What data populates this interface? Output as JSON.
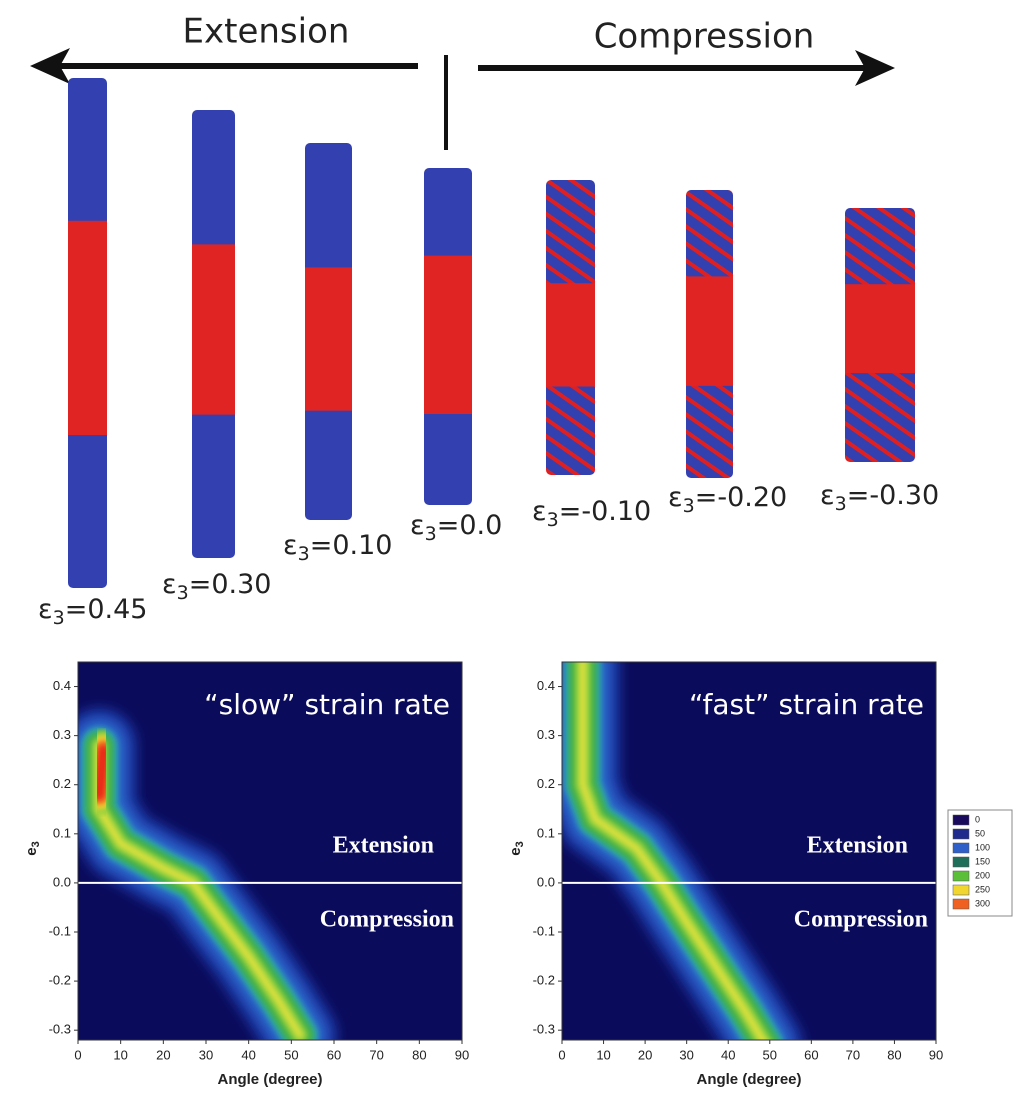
{
  "figure": {
    "arrow_left": "Extension",
    "arrow_right": "Compression",
    "columns": [
      {
        "symbol": "ε",
        "sub": "3",
        "value": "=0.45"
      },
      {
        "symbol": "ε",
        "sub": "3",
        "value": "=0.30"
      },
      {
        "symbol": "ε",
        "sub": "3",
        "value": "=0.10"
      },
      {
        "symbol": "ε",
        "sub": "3",
        "value": "=0.0"
      },
      {
        "symbol": "ε",
        "sub": "3",
        "value": "=-0.10"
      },
      {
        "symbol": "ε",
        "sub": "3",
        "value": "=-0.20"
      },
      {
        "symbol": "ε",
        "sub": "3",
        "value": "=-0.30"
      }
    ]
  },
  "chart_data": [
    {
      "type": "heatmap",
      "annotation": "“slow” strain rate",
      "regions": [
        "Extension",
        "Compression"
      ],
      "xlabel": "Angle (degree)",
      "ylabel": "e",
      "ylabel_sub": "3",
      "xlim": [
        0,
        90
      ],
      "xticks": [
        0,
        10,
        20,
        30,
        40,
        50,
        60,
        70,
        80,
        90
      ],
      "ylim": [
        -0.32,
        0.45
      ],
      "yticks": [
        -0.3,
        -0.2,
        -0.1,
        {
          "value": 0,
          "label": "0.0"
        },
        0.1,
        0.2,
        0.3,
        0.4
      ],
      "hline": 0,
      "ridge": {
        "x": [
          5,
          5,
          10,
          20,
          27,
          33,
          40,
          47,
          52
        ],
        "y": [
          0.28,
          0.15,
          0.08,
          0.03,
          0.0,
          -0.07,
          -0.15,
          -0.24,
          -0.31
        ]
      },
      "peak": {
        "x": [
          5,
          6
        ],
        "y": [
          0.18,
          0.27
        ]
      }
    },
    {
      "type": "heatmap",
      "annotation": "“fast” strain rate",
      "regions": [
        "Extension",
        "Compression"
      ],
      "xlabel": "Angle (degree)",
      "ylabel": "e",
      "ylabel_sub": "3",
      "xlim": [
        0,
        90
      ],
      "xticks": [
        0,
        10,
        20,
        30,
        40,
        50,
        60,
        70,
        80,
        90
      ],
      "ylim": [
        -0.32,
        0.45
      ],
      "yticks": [
        -0.3,
        -0.2,
        -0.1,
        {
          "value": 0,
          "label": "0.0"
        },
        0.1,
        0.2,
        0.3,
        0.4
      ],
      "hline": 0,
      "ridge": {
        "x": [
          5,
          5,
          8,
          18,
          24,
          30,
          37,
          44,
          49
        ],
        "y": [
          0.45,
          0.2,
          0.13,
          0.07,
          0.0,
          -0.08,
          -0.17,
          -0.26,
          -0.33
        ]
      },
      "peak": {
        "x": [
          5,
          5
        ],
        "y": [
          0.22,
          0.45
        ]
      }
    }
  ],
  "colorbar": {
    "ticks": [
      0,
      50,
      100,
      150,
      200,
      250,
      300
    ],
    "colors": [
      "#1a0a5e",
      "#1f2a8c",
      "#2f5fc8",
      "#1f6e5a",
      "#5cbf3a",
      "#f2d630",
      "#f06020"
    ]
  }
}
